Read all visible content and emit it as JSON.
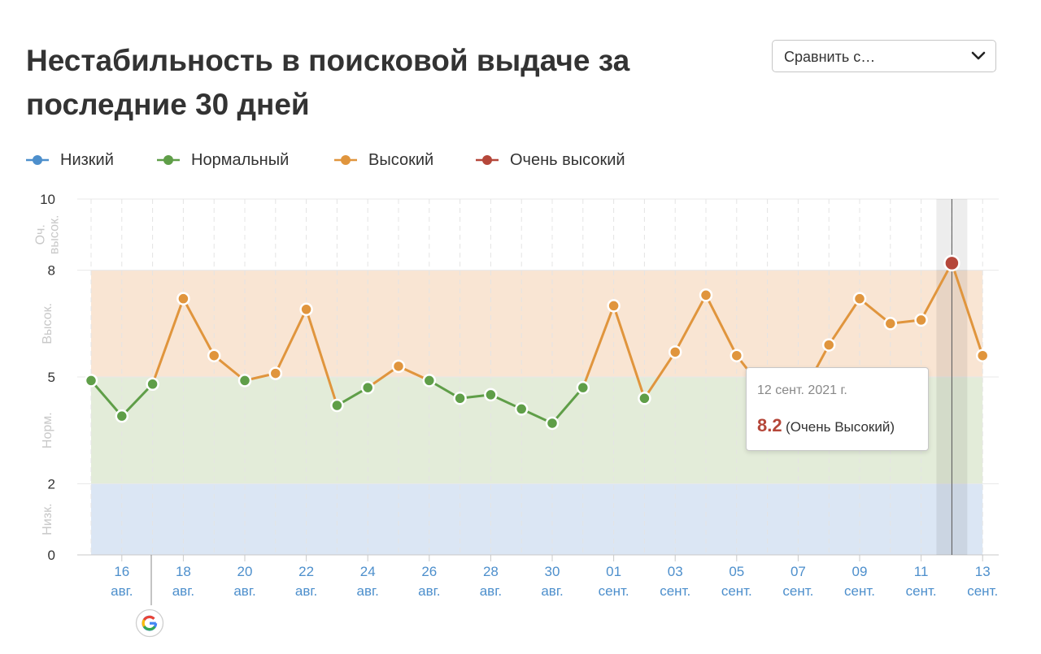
{
  "title": "Нестабильность в поисковой выдаче за последние 30 дней",
  "compare_dropdown": {
    "label": "Сравнить с…",
    "icon": "chevron-down-icon"
  },
  "legend": [
    {
      "label": "Низкий",
      "color": "#4d8fcc"
    },
    {
      "label": "Нормальный",
      "color": "#5f9e48"
    },
    {
      "label": "Высокий",
      "color": "#e0953d"
    },
    {
      "label": "Очень высокий",
      "color": "#b5473a"
    }
  ],
  "tooltip": {
    "date": "12 сент. 2021 г.",
    "value": "8.2",
    "category": "(Очень Высокий)"
  },
  "google_marker": {
    "icon": "google-logo-icon"
  },
  "chart_data": {
    "type": "line",
    "title": "Нестабильность в поисковой выдаче за последние 30 дней",
    "xlabel": "",
    "ylabel": "",
    "ylim": [
      0,
      10
    ],
    "yticks": [
      "0",
      "2",
      "5",
      "8",
      "10"
    ],
    "bands": [
      {
        "label": "Низк.",
        "from": 0,
        "to": 2,
        "color": "#dbe6f4"
      },
      {
        "label": "Норм.",
        "from": 2,
        "to": 5,
        "color": "#e3ecd9"
      },
      {
        "label": "Высок.",
        "from": 5,
        "to": 8,
        "color": "#f9e5d3"
      },
      {
        "label": "Оч. высок.",
        "from": 8,
        "to": 10,
        "color": "#ffffff"
      }
    ],
    "x_ticks": [
      {
        "day": "16",
        "month": "авг."
      },
      {
        "day": "18",
        "month": "авг."
      },
      {
        "day": "20",
        "month": "авг."
      },
      {
        "day": "22",
        "month": "авг."
      },
      {
        "day": "24",
        "month": "авг."
      },
      {
        "day": "26",
        "month": "авг."
      },
      {
        "day": "28",
        "month": "авг."
      },
      {
        "day": "30",
        "month": "авг."
      },
      {
        "day": "01",
        "month": "сент."
      },
      {
        "day": "03",
        "month": "сент."
      },
      {
        "day": "05",
        "month": "сент."
      },
      {
        "day": "07",
        "month": "сент."
      },
      {
        "day": "09",
        "month": "сент."
      },
      {
        "day": "11",
        "month": "сент."
      },
      {
        "day": "13",
        "month": "сент."
      }
    ],
    "x": [
      "15 авг.",
      "16 авг.",
      "17 авг.",
      "18 авг.",
      "19 авг.",
      "20 авг.",
      "21 авг.",
      "22 авг.",
      "23 авг.",
      "24 авг.",
      "25 авг.",
      "26 авг.",
      "27 авг.",
      "28 авг.",
      "29 авг.",
      "30 авг.",
      "31 авг.",
      "01 сент.",
      "02 сент.",
      "03 сент.",
      "04 сент.",
      "05 сент.",
      "06 сент.",
      "07 сент.",
      "08 сент.",
      "09 сент.",
      "10 сент.",
      "11 сент.",
      "12 сент.",
      "13 сент."
    ],
    "values": [
      4.9,
      3.9,
      4.8,
      7.2,
      5.6,
      4.9,
      5.1,
      6.9,
      4.2,
      4.7,
      5.3,
      4.9,
      4.4,
      4.5,
      4.1,
      3.7,
      4.7,
      7.0,
      4.4,
      5.7,
      7.3,
      5.6,
      4.5,
      4.3,
      5.9,
      7.2,
      6.5,
      6.6,
      8.2,
      5.6
    ],
    "highlight_index": 28
  }
}
